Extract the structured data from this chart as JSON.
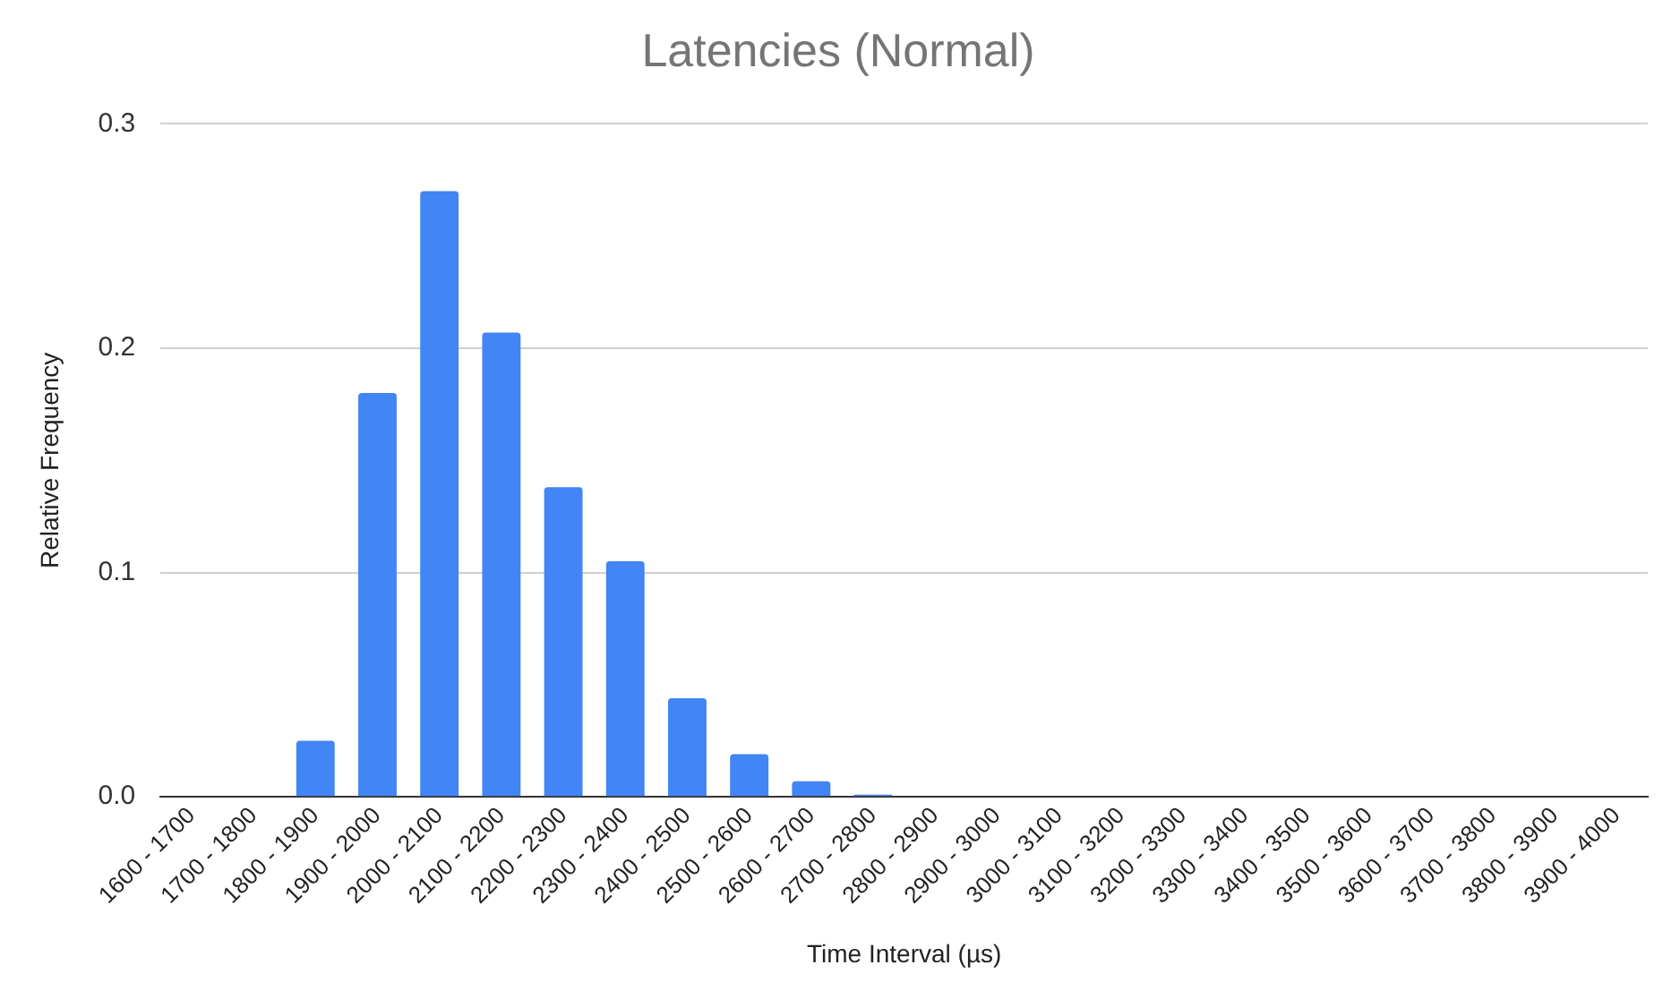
{
  "chart_data": {
    "type": "bar",
    "title": "Latencies (Normal)",
    "xlabel": "Time Interval (µs)",
    "ylabel": "Relative Frequency",
    "categories": [
      "1600 - 1700",
      "1700 - 1800",
      "1800 - 1900",
      "1900 - 2000",
      "2000 - 2100",
      "2100 - 2200",
      "2200 - 2300",
      "2300 - 2400",
      "2400 - 2500",
      "2500 - 2600",
      "2600 - 2700",
      "2700 - 2800",
      "2800 - 2900",
      "2900 - 3000",
      "3000 - 3100",
      "3100 - 3200",
      "3200 - 3300",
      "3300 - 3400",
      "3400 - 3500",
      "3500 - 3600",
      "3600 - 3700",
      "3700 - 3800",
      "3800 - 3900",
      "3900 - 4000"
    ],
    "values": [
      0,
      0,
      0.025,
      0.18,
      0.27,
      0.207,
      0.138,
      0.105,
      0.044,
      0.019,
      0.007,
      0.001,
      0,
      0,
      0,
      0,
      0,
      0,
      0,
      0,
      0,
      0,
      0,
      0
    ],
    "color": "#4285f4",
    "ylim": [
      0,
      0.3
    ],
    "yticks": [
      {
        "value": 0,
        "label": "0.0"
      },
      0.1,
      0.2,
      0.3
    ],
    "grid": "y",
    "legend": false
  }
}
